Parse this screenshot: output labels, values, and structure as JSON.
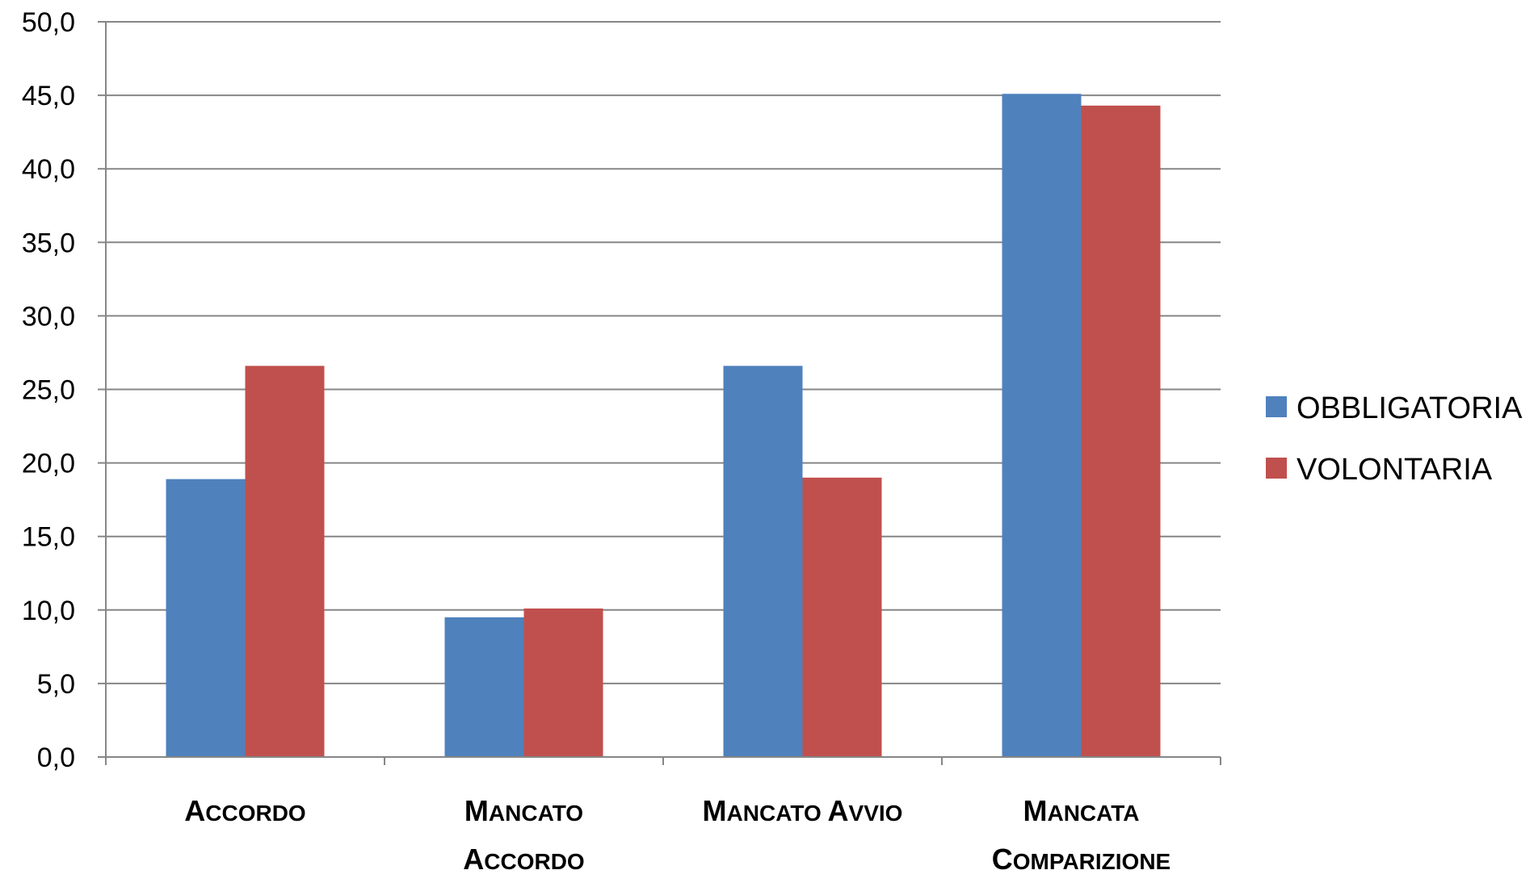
{
  "chart_data": {
    "type": "bar",
    "categories": [
      "Accordo",
      "Mancato Accordo",
      "Mancato Avvio",
      "Mancata Comparizione"
    ],
    "category_label_lines": [
      [
        "Accordo"
      ],
      [
        "Mancato",
        "Accordo"
      ],
      [
        "Mancato Avvio"
      ],
      [
        "Mancata",
        "Comparizione"
      ]
    ],
    "series": [
      {
        "name": "OBBLIGATORIA",
        "color": "#4F81BD",
        "values": [
          18.9,
          9.5,
          26.6,
          45.1
        ]
      },
      {
        "name": "VOLONTARIA",
        "color": "#C0504D",
        "values": [
          26.6,
          10.1,
          19.0,
          44.3
        ]
      }
    ],
    "ylim": [
      0,
      50
    ],
    "yticks": [
      0,
      5,
      10,
      15,
      20,
      25,
      30,
      35,
      40,
      45,
      50
    ],
    "ytick_labels": [
      "0,0",
      "5,0",
      "10,0",
      "15,0",
      "20,0",
      "25,0",
      "30,0",
      "35,0",
      "40,0",
      "45,0",
      "50,0"
    ],
    "grid": true,
    "legend_position": "right",
    "category_label_style": "bold small-caps",
    "title": "",
    "xlabel": "",
    "ylabel": ""
  }
}
